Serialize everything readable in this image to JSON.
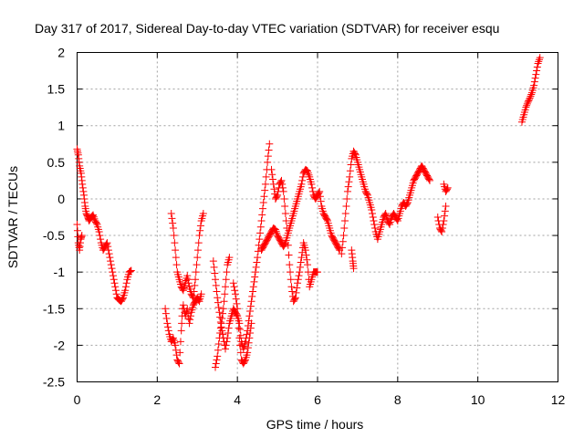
{
  "chart_data": {
    "type": "scatter",
    "title": "Day 317 of 2017, Sidereal Day-to-day VTEC variation (SDTVAR) for receiver esqu",
    "xlabel": "GPS time / hours",
    "ylabel": "SDTVAR / TECUs",
    "xlim": [
      0,
      12
    ],
    "ylim": [
      -2.5,
      2
    ],
    "xticks": [
      0,
      2,
      4,
      6,
      8,
      10,
      12
    ],
    "xtick_labels": [
      "0",
      "2",
      "4",
      "6",
      "8",
      "10",
      "12"
    ],
    "yticks": [
      2,
      1.5,
      1,
      0.5,
      0,
      -0.5,
      -1,
      -1.5,
      -2,
      -2.5
    ],
    "ytick_labels": [
      "2",
      "1.5",
      "1",
      "0.5",
      "0",
      "-0.5",
      "-1",
      "-1.5",
      "-2",
      "-2.5"
    ],
    "grid": true,
    "marker": "+",
    "color": "#ff0000",
    "series": [
      {
        "name": "SDTVAR",
        "segments": [
          [
            [
              0.0,
              0.68
            ],
            [
              0.03,
              0.6
            ],
            [
              0.06,
              0.45
            ],
            [
              0.1,
              0.35
            ],
            [
              0.13,
              0.2
            ],
            [
              0.17,
              0.05
            ],
            [
              0.2,
              -0.1
            ],
            [
              0.23,
              -0.2
            ],
            [
              0.27,
              -0.25
            ],
            [
              0.3,
              -0.3
            ],
            [
              0.35,
              -0.25
            ],
            [
              0.4,
              -0.22
            ],
            [
              0.45,
              -0.3
            ],
            [
              0.5,
              -0.35
            ],
            [
              0.55,
              -0.45
            ],
            [
              0.6,
              -0.6
            ],
            [
              0.65,
              -0.7
            ],
            [
              0.7,
              -0.65
            ],
            [
              0.75,
              -0.6
            ],
            [
              0.8,
              -0.75
            ],
            [
              0.85,
              -0.9
            ],
            [
              0.9,
              -1.05
            ],
            [
              0.95,
              -1.2
            ],
            [
              1.0,
              -1.35
            ],
            [
              1.05,
              -1.38
            ],
            [
              1.1,
              -1.4
            ],
            [
              1.15,
              -1.35
            ],
            [
              1.2,
              -1.25
            ],
            [
              1.25,
              -1.1
            ],
            [
              1.3,
              -1.0
            ],
            [
              1.35,
              -0.98
            ]
          ],
          [
            [
              0.0,
              -0.35
            ],
            [
              0.03,
              -0.6
            ],
            [
              0.06,
              -0.7
            ],
            [
              0.09,
              -0.55
            ],
            [
              0.12,
              -0.5
            ]
          ],
          [
            [
              2.2,
              -1.5
            ],
            [
              2.25,
              -1.7
            ],
            [
              2.3,
              -1.85
            ],
            [
              2.35,
              -1.95
            ],
            [
              2.4,
              -1.9
            ],
            [
              2.45,
              -2.0
            ],
            [
              2.5,
              -2.2
            ],
            [
              2.55,
              -2.25
            ],
            [
              2.6,
              -1.8
            ],
            [
              2.63,
              -1.5
            ]
          ],
          [
            [
              2.35,
              -0.2
            ],
            [
              2.4,
              -0.4
            ],
            [
              2.45,
              -0.7
            ],
            [
              2.5,
              -1.0
            ],
            [
              2.55,
              -1.1
            ],
            [
              2.6,
              -1.2
            ],
            [
              2.65,
              -1.25
            ],
            [
              2.7,
              -1.15
            ],
            [
              2.75,
              -1.05
            ],
            [
              2.8,
              -1.2
            ],
            [
              2.85,
              -1.3
            ],
            [
              2.9,
              -1.35
            ],
            [
              2.95,
              -1.1
            ],
            [
              3.0,
              -0.8
            ],
            [
              3.05,
              -0.5
            ],
            [
              3.1,
              -0.3
            ],
            [
              3.15,
              -0.2
            ]
          ],
          [
            [
              2.65,
              -1.45
            ],
            [
              2.7,
              -1.6
            ],
            [
              2.75,
              -1.5
            ],
            [
              2.8,
              -1.7
            ],
            [
              2.85,
              -1.55
            ],
            [
              2.9,
              -1.45
            ],
            [
              2.95,
              -1.4
            ],
            [
              3.0,
              -1.35
            ],
            [
              3.05,
              -1.4
            ],
            [
              3.1,
              -1.3
            ]
          ],
          [
            [
              3.4,
              -0.85
            ],
            [
              3.45,
              -1.1
            ],
            [
              3.5,
              -1.35
            ],
            [
              3.55,
              -1.55
            ],
            [
              3.6,
              -1.75
            ],
            [
              3.65,
              -1.9
            ],
            [
              3.7,
              -2.05
            ],
            [
              3.75,
              -1.9
            ],
            [
              3.8,
              -1.7
            ],
            [
              3.85,
              -1.6
            ],
            [
              3.9,
              -1.5
            ],
            [
              3.95,
              -1.55
            ],
            [
              4.0,
              -1.6
            ],
            [
              4.05,
              -1.7
            ],
            [
              4.1,
              -1.95
            ],
            [
              4.15,
              -2.05
            ],
            [
              4.2,
              -1.95
            ],
            [
              4.25,
              -1.8
            ],
            [
              4.3,
              -1.6
            ],
            [
              4.35,
              -1.4
            ],
            [
              4.4,
              -1.2
            ],
            [
              4.45,
              -1.0
            ],
            [
              4.5,
              -0.8
            ],
            [
              4.55,
              -0.55
            ],
            [
              4.6,
              -0.3
            ],
            [
              4.65,
              -0.05
            ],
            [
              4.7,
              0.2
            ],
            [
              4.75,
              0.5
            ],
            [
              4.8,
              0.75
            ]
          ],
          [
            [
              3.45,
              -2.3
            ],
            [
              3.5,
              -2.15
            ],
            [
              3.55,
              -1.9
            ],
            [
              3.6,
              -1.7
            ],
            [
              3.65,
              -1.5
            ],
            [
              3.7,
              -1.2
            ],
            [
              3.75,
              -0.9
            ],
            [
              3.8,
              -0.8
            ]
          ],
          [
            [
              3.9,
              -1.15
            ],
            [
              3.95,
              -1.3
            ],
            [
              4.0,
              -1.5
            ],
            [
              4.05,
              -1.9
            ],
            [
              4.1,
              -2.2
            ],
            [
              4.15,
              -2.25
            ],
            [
              4.2,
              -2.2
            ],
            [
              4.25,
              -2.1
            ],
            [
              4.3,
              -1.9
            ],
            [
              4.35,
              -1.7
            ]
          ],
          [
            [
              4.6,
              -0.7
            ],
            [
              4.65,
              -0.65
            ],
            [
              4.7,
              -0.6
            ],
            [
              4.75,
              -0.55
            ],
            [
              4.8,
              -0.5
            ],
            [
              4.85,
              -0.45
            ],
            [
              4.9,
              -0.4
            ],
            [
              4.95,
              -0.42
            ],
            [
              5.0,
              -0.5
            ],
            [
              5.05,
              -0.55
            ],
            [
              5.1,
              -0.6
            ],
            [
              5.15,
              -0.65
            ],
            [
              5.2,
              -0.6
            ],
            [
              5.25,
              -0.5
            ],
            [
              5.3,
              -0.4
            ],
            [
              5.35,
              -0.3
            ],
            [
              5.4,
              -0.2
            ],
            [
              5.45,
              -0.1
            ],
            [
              5.5,
              0.0
            ],
            [
              5.55,
              0.1
            ],
            [
              5.6,
              0.2
            ],
            [
              5.65,
              0.35
            ],
            [
              5.7,
              0.4
            ],
            [
              5.75,
              0.38
            ],
            [
              5.8,
              0.3
            ],
            [
              5.85,
              0.2
            ],
            [
              5.9,
              0.05
            ],
            [
              5.95,
              0.0
            ],
            [
              6.0,
              0.05
            ],
            [
              6.05,
              0.1
            ],
            [
              6.1,
              -0.1
            ],
            [
              6.15,
              -0.2
            ],
            [
              6.2,
              -0.25
            ],
            [
              6.25,
              -0.3
            ],
            [
              6.3,
              -0.4
            ],
            [
              6.35,
              -0.5
            ],
            [
              6.4,
              -0.55
            ],
            [
              6.45,
              -0.6
            ],
            [
              6.5,
              -0.65
            ],
            [
              6.55,
              -0.7
            ]
          ],
          [
            [
              4.85,
              0.4
            ],
            [
              4.9,
              0.2
            ],
            [
              4.95,
              0.0
            ],
            [
              5.0,
              0.05
            ],
            [
              5.05,
              0.2
            ],
            [
              5.1,
              0.25
            ],
            [
              5.15,
              0.1
            ],
            [
              5.2,
              -0.2
            ],
            [
              5.25,
              -0.5
            ],
            [
              5.3,
              -0.9
            ],
            [
              5.35,
              -1.2
            ],
            [
              5.4,
              -1.4
            ],
            [
              5.45,
              -1.35
            ],
            [
              5.5,
              -1.15
            ],
            [
              5.55,
              -1.0
            ],
            [
              5.6,
              -0.8
            ],
            [
              5.65,
              -0.6
            ],
            [
              5.7,
              -0.7
            ],
            [
              5.75,
              -0.9
            ],
            [
              5.8,
              -1.2
            ],
            [
              5.85,
              -1.1
            ],
            [
              5.9,
              -1.0
            ],
            [
              5.95,
              -1.0
            ],
            [
              6.0,
              -1.0
            ]
          ],
          [
            [
              6.6,
              -0.75
            ],
            [
              6.65,
              -0.5
            ],
            [
              6.7,
              -0.2
            ],
            [
              6.75,
              0.1
            ],
            [
              6.8,
              0.3
            ],
            [
              6.85,
              0.55
            ],
            [
              6.9,
              0.65
            ],
            [
              6.95,
              0.6
            ],
            [
              7.0,
              0.5
            ],
            [
              7.05,
              0.4
            ],
            [
              7.1,
              0.3
            ],
            [
              7.15,
              0.2
            ],
            [
              7.2,
              0.1
            ],
            [
              7.25,
              0.05
            ],
            [
              7.3,
              -0.05
            ],
            [
              7.35,
              -0.15
            ],
            [
              7.4,
              -0.3
            ],
            [
              7.45,
              -0.45
            ],
            [
              7.5,
              -0.55
            ],
            [
              7.55,
              -0.45
            ],
            [
              7.6,
              -0.35
            ],
            [
              7.65,
              -0.25
            ],
            [
              7.7,
              -0.2
            ],
            [
              7.75,
              -0.3
            ],
            [
              7.8,
              -0.35
            ],
            [
              7.85,
              -0.25
            ],
            [
              7.9,
              -0.2
            ],
            [
              7.95,
              -0.25
            ],
            [
              8.0,
              -0.3
            ],
            [
              8.05,
              -0.2
            ],
            [
              8.1,
              -0.1
            ],
            [
              8.15,
              -0.05
            ],
            [
              8.2,
              -0.1
            ],
            [
              8.25,
              -0.05
            ],
            [
              8.3,
              0.05
            ],
            [
              8.35,
              0.15
            ],
            [
              8.4,
              0.25
            ],
            [
              8.45,
              0.3
            ],
            [
              8.5,
              0.35
            ],
            [
              8.55,
              0.4
            ],
            [
              8.6,
              0.45
            ],
            [
              8.65,
              0.4
            ],
            [
              8.7,
              0.35
            ],
            [
              8.75,
              0.3
            ],
            [
              8.8,
              0.25
            ]
          ],
          [
            [
              6.85,
              -0.7
            ],
            [
              6.88,
              -0.85
            ],
            [
              6.9,
              -0.95
            ]
          ],
          [
            [
              9.0,
              -0.25
            ],
            [
              9.05,
              -0.4
            ],
            [
              9.1,
              -0.45
            ],
            [
              9.15,
              -0.3
            ],
            [
              9.2,
              -0.1
            ]
          ],
          [
            [
              9.15,
              0.2
            ],
            [
              9.2,
              0.1
            ],
            [
              9.25,
              0.15
            ]
          ],
          [
            [
              11.1,
              1.05
            ],
            [
              11.15,
              1.15
            ],
            [
              11.2,
              1.25
            ],
            [
              11.25,
              1.32
            ],
            [
              11.3,
              1.38
            ],
            [
              11.35,
              1.45
            ],
            [
              11.4,
              1.55
            ],
            [
              11.45,
              1.7
            ],
            [
              11.5,
              1.85
            ],
            [
              11.55,
              1.93
            ]
          ]
        ]
      }
    ]
  }
}
